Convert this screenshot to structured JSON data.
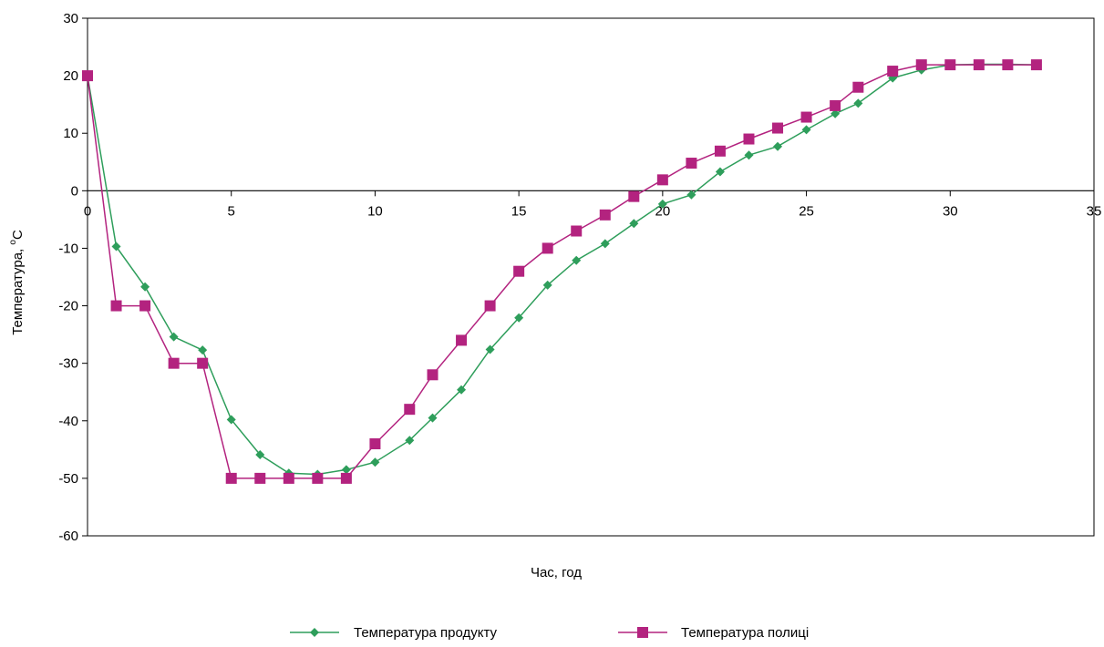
{
  "chart_data": {
    "type": "line",
    "title": "",
    "xlabel": "Час, год",
    "ylabel_main": "Температура, ",
    "ylabel_sup": "o",
    "ylabel_unit": "C",
    "xlim": [
      0,
      35
    ],
    "ylim": [
      -60,
      30
    ],
    "x_ticks": [
      0,
      5,
      10,
      15,
      20,
      25,
      30,
      35
    ],
    "y_ticks": [
      -60,
      -50,
      -40,
      -30,
      -20,
      -10,
      0,
      10,
      20,
      30
    ],
    "grid": false,
    "legend_position": "bottom",
    "series": [
      {
        "name": "Температура продукту",
        "color": "#2e9e5b",
        "marker": "diamond",
        "x": [
          0,
          1,
          2,
          3,
          4,
          5,
          6,
          7,
          8,
          9,
          10,
          11.2,
          12,
          13,
          14,
          15,
          16,
          17,
          18,
          19,
          20,
          21,
          22,
          23,
          24,
          25,
          26,
          26.8,
          28,
          29,
          30,
          31,
          32,
          33
        ],
        "y": [
          20,
          -9.7,
          -16.7,
          -25.4,
          -27.7,
          -39.8,
          -45.9,
          -49.1,
          -49.3,
          -48.5,
          -47.2,
          -43.4,
          -39.5,
          -34.6,
          -27.6,
          -22.1,
          -16.4,
          -12.1,
          -9.2,
          -5.7,
          -2.3,
          -0.7,
          3.3,
          6.2,
          7.7,
          10.6,
          13.4,
          15.2,
          19.6,
          21.0,
          21.9,
          22.0,
          22.0,
          21.9
        ]
      },
      {
        "name": "Температура полиці",
        "color": "#b3237f",
        "marker": "square",
        "x": [
          0,
          1,
          2,
          3,
          4,
          5,
          6,
          7,
          8,
          9,
          10,
          11.2,
          12,
          13,
          14,
          15,
          16,
          17,
          18,
          19,
          20,
          21,
          22,
          23,
          24,
          25,
          26,
          26.8,
          28,
          29,
          30,
          31,
          32,
          33
        ],
        "y": [
          20,
          -20,
          -20,
          -30,
          -30,
          -50,
          -50,
          -50,
          -50,
          -50,
          -44,
          -38,
          -32,
          -26,
          -20,
          -14,
          -10,
          -7,
          -4.2,
          -1.0,
          1.9,
          4.8,
          6.9,
          9.0,
          10.9,
          12.8,
          14.8,
          18.0,
          20.8,
          21.9,
          21.9,
          21.9,
          21.9,
          21.9
        ]
      }
    ]
  }
}
